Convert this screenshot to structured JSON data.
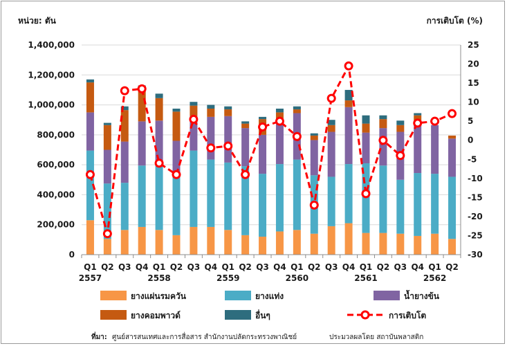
{
  "chart_data": {
    "type": "bar",
    "stacked": true,
    "left_axis_label": "หน่วย: ตัน",
    "right_axis_label": "การเติบโต (%)",
    "ylim_left": [
      0,
      1400000
    ],
    "ylim_right": [
      -30,
      25
    ],
    "left_ticks": [
      "0",
      "200,000",
      "400,000",
      "600,000",
      "800,000",
      "1,000,000",
      "1,200,000",
      "1,400,000"
    ],
    "right_ticks": [
      "-30",
      "-25",
      "-20",
      "-15",
      "-10",
      "-5",
      "0",
      "5",
      "10",
      "15",
      "20",
      "25"
    ],
    "grid": true,
    "categories": [
      "Q1",
      "Q2",
      "Q3",
      "Q4",
      "Q1",
      "Q2",
      "Q3",
      "Q4",
      "Q1",
      "Q2",
      "Q3",
      "Q4",
      "Q1",
      "Q2",
      "Q3",
      "Q4",
      "Q1",
      "Q2",
      "Q3",
      "Q4",
      "Q1",
      "Q2"
    ],
    "years": [
      {
        "label": "2557",
        "index": 0
      },
      {
        "label": "2558",
        "index": 4
      },
      {
        "label": "2559",
        "index": 8
      },
      {
        "label": "2560",
        "index": 12
      },
      {
        "label": "2561",
        "index": 16
      },
      {
        "label": "2562",
        "index": 20
      }
    ],
    "series": [
      {
        "name": "ยางแผ่นรมควัน",
        "color": "#f79646",
        "values": [
          230000,
          105000,
          165000,
          185000,
          165000,
          130000,
          185000,
          185000,
          165000,
          130000,
          120000,
          155000,
          165000,
          140000,
          190000,
          210000,
          145000,
          145000,
          140000,
          125000,
          140000,
          105000
        ]
      },
      {
        "name": "ยางแท่ง",
        "color": "#4bacc6",
        "values": [
          465000,
          370000,
          315000,
          410000,
          435000,
          385000,
          510000,
          450000,
          450000,
          460000,
          420000,
          450000,
          470000,
          390000,
          330000,
          395000,
          465000,
          450000,
          360000,
          420000,
          400000,
          415000
        ]
      },
      {
        "name": "น้ำยางข้น",
        "color": "#8064a2",
        "values": [
          255000,
          225000,
          275000,
          295000,
          295000,
          245000,
          230000,
          285000,
          310000,
          255000,
          260000,
          300000,
          310000,
          235000,
          300000,
          380000,
          205000,
          250000,
          320000,
          345000,
          325000,
          255000
        ]
      },
      {
        "name": "ยางคอมพาวด์",
        "color": "#c55a11",
        "values": [
          200000,
          165000,
          210000,
          220000,
          150000,
          195000,
          70000,
          55000,
          45000,
          30000,
          105000,
          45000,
          25000,
          30000,
          45000,
          45000,
          60000,
          60000,
          45000,
          40000,
          0,
          20000
        ]
      },
      {
        "name": "อื่นๆ",
        "color": "#2e6d7e",
        "values": [
          20000,
          15000,
          25000,
          20000,
          30000,
          20000,
          25000,
          25000,
          20000,
          15000,
          15000,
          25000,
          20000,
          15000,
          35000,
          70000,
          55000,
          25000,
          30000,
          15000,
          0,
          0
        ]
      }
    ],
    "line": {
      "name": "การเติบโต",
      "color": "#ff0000",
      "values": [
        -9,
        -24.5,
        13,
        13.5,
        -6,
        -9,
        5.5,
        -2,
        -1.5,
        -9,
        3.5,
        5,
        1,
        -17,
        11,
        19.5,
        -14,
        0,
        -4,
        4.5,
        5,
        7
      ]
    }
  },
  "legend": [
    {
      "label": "ยางแผ่นรมควัน",
      "color": "#f79646",
      "kind": "box"
    },
    {
      "label": "ยางแท่ง",
      "color": "#4bacc6",
      "kind": "box"
    },
    {
      "label": "น้ำยางข้น",
      "color": "#8064a2",
      "kind": "box"
    },
    {
      "label": "ยางคอมพาวด์",
      "color": "#c55a11",
      "kind": "box"
    },
    {
      "label": "อื่นๆ",
      "color": "#2e6d7e",
      "kind": "box"
    },
    {
      "label": "การเติบโต",
      "color": "#ff0000",
      "kind": "line"
    }
  ],
  "source": {
    "label": "ที่มา:",
    "text": "ศูนย์สารสนเทศและการสื่อสาร  สำนักงานปลัดกระทรวงพาณิชย์",
    "credit": "ประมวลผลโดย  สถาบันพลาสติก"
  }
}
